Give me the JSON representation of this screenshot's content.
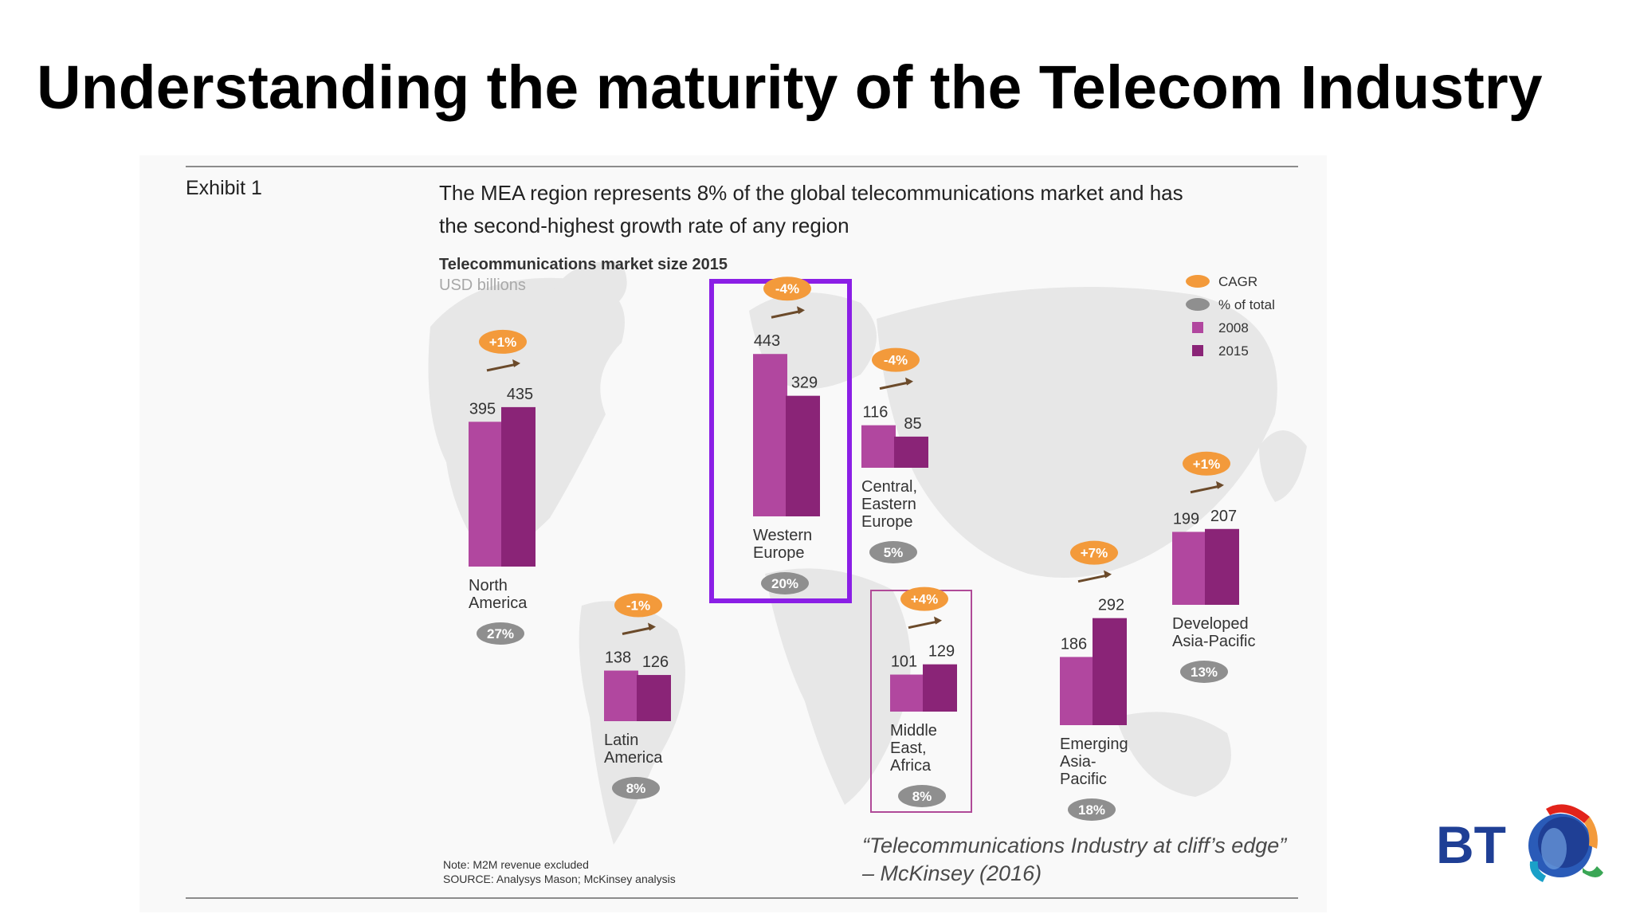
{
  "slide": {
    "title": "Understanding the maturity of the Telecom Industry",
    "title_color": "#5a1fa0",
    "exhibit_label": "Exhibit 1",
    "caption_line1": "The MEA region represents 8% of the global telecommunications market and has",
    "caption_line2": "the second-highest growth rate of any region",
    "note_line1": "Note: M2M revenue excluded",
    "note_line2": "SOURCE: Analysys Mason; McKinsey analysis",
    "quote_line1": "“Telecommunications Industry at cliff’s edge”",
    "quote_line2": "– McKinsey (2016)",
    "logo_text": "BT"
  },
  "colors": {
    "bar_2008": "#b1479f",
    "bar_2015": "#8a2477",
    "cagr_badge": "#f39a3b",
    "share_badge": "#8f8f8f",
    "arrow": "#6b4a2a",
    "highlight_box": "#8b1fe6",
    "mea_box": "#b04a98",
    "map": "#e7e7e7",
    "logo_blue": "#1f3f95",
    "logo_red": "#e2231a"
  },
  "chart_data": {
    "type": "bar",
    "title": "Telecommunications market size 2015",
    "subtitle": "USD billions",
    "legend": [
      {
        "label": "CAGR",
        "symbol": "orange-oval"
      },
      {
        "label": "% of total",
        "symbol": "gray-oval"
      },
      {
        "label": "2008",
        "symbol": "light-magenta-square"
      },
      {
        "label": "2015",
        "symbol": "dark-magenta-square"
      }
    ],
    "series": [
      {
        "name": "2008"
      },
      {
        "name": "2015"
      }
    ],
    "regions": [
      {
        "name": [
          "North",
          "America"
        ],
        "v2008": 395,
        "v2015": 435,
        "cagr": "+1%",
        "share": "27%"
      },
      {
        "name": [
          "Latin",
          "America"
        ],
        "v2008": 138,
        "v2015": 126,
        "cagr": "-1%",
        "share": "8%"
      },
      {
        "name": [
          "Western",
          "Europe"
        ],
        "v2008": 443,
        "v2015": 329,
        "cagr": "-4%",
        "share": "20%"
      },
      {
        "name": [
          "Central,",
          "Eastern",
          "Europe"
        ],
        "v2008": 116,
        "v2015": 85,
        "cagr": "-4%",
        "share": "5%"
      },
      {
        "name": [
          "Middle",
          "East,",
          "Africa"
        ],
        "v2008": 101,
        "v2015": 129,
        "cagr": "+4%",
        "share": "8%"
      },
      {
        "name": [
          "Emerging",
          "Asia-",
          "Pacific"
        ],
        "v2008": 186,
        "v2015": 292,
        "cagr": "+7%",
        "share": "18%"
      },
      {
        "name": [
          "Developed",
          "Asia-Pacific"
        ],
        "v2008": 199,
        "v2015": 207,
        "cagr": "+1%",
        "share": "13%"
      }
    ]
  }
}
